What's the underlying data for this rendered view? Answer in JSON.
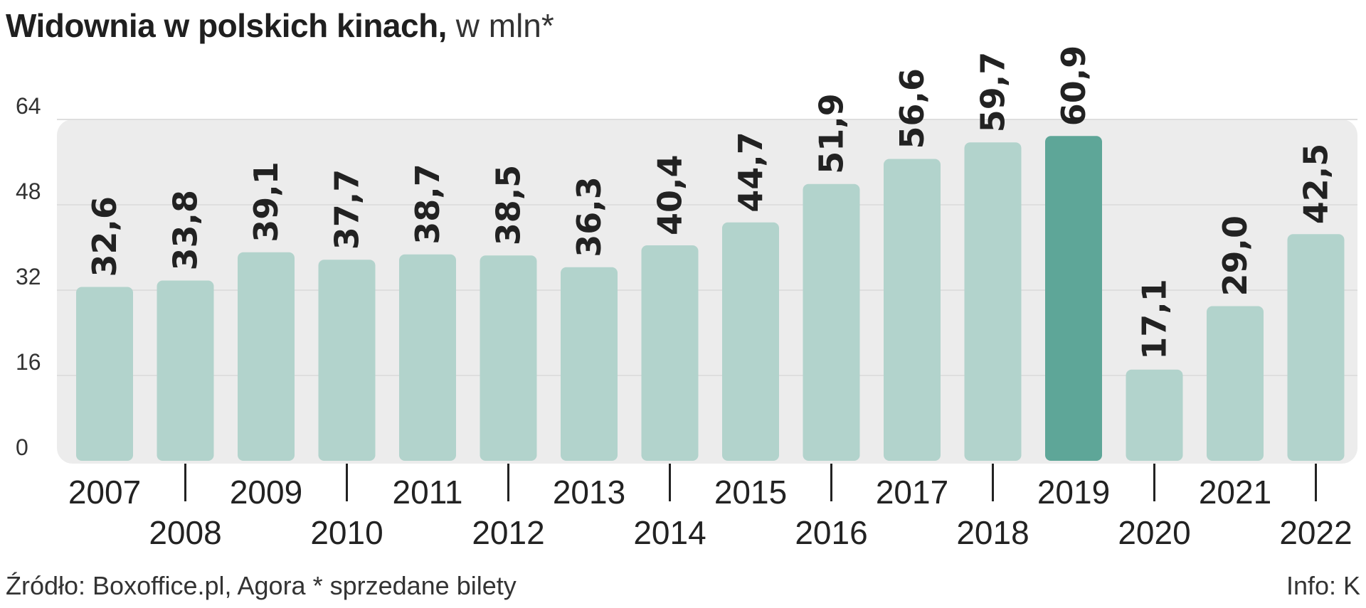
{
  "title": {
    "main": "Widownia w polskich kinach,",
    "unit": "w mln*"
  },
  "footer": {
    "source": "Źródło: Boxoffice.pl, Agora * sprzedane bilety",
    "credit": "Info: K"
  },
  "colors": {
    "bar": "#b2d3cc",
    "highlight": "#5ea698",
    "grid": "#dedede",
    "panel": "#ececec"
  },
  "chart_data": {
    "type": "bar",
    "categories": [
      "2007",
      "2008",
      "2009",
      "2010",
      "2011",
      "2012",
      "2013",
      "2014",
      "2015",
      "2016",
      "2017",
      "2018",
      "2019",
      "2020",
      "2021",
      "2022"
    ],
    "values": [
      32.6,
      33.8,
      39.1,
      37.7,
      38.7,
      38.5,
      36.3,
      40.4,
      44.7,
      51.9,
      56.6,
      59.7,
      60.9,
      17.1,
      29.0,
      42.5
    ],
    "value_labels": [
      "32,6",
      "33,8",
      "39,1",
      "37,7",
      "38,7",
      "38,5",
      "36,3",
      "40,4",
      "44,7",
      "51,9",
      "56,6",
      "59,7",
      "60,9",
      "17,1",
      "29,0",
      "42,5"
    ],
    "highlight_category": "2019",
    "yticks": [
      0,
      16,
      32,
      48,
      64
    ],
    "ylim": [
      0,
      64
    ],
    "grid": true,
    "legend": "none"
  }
}
